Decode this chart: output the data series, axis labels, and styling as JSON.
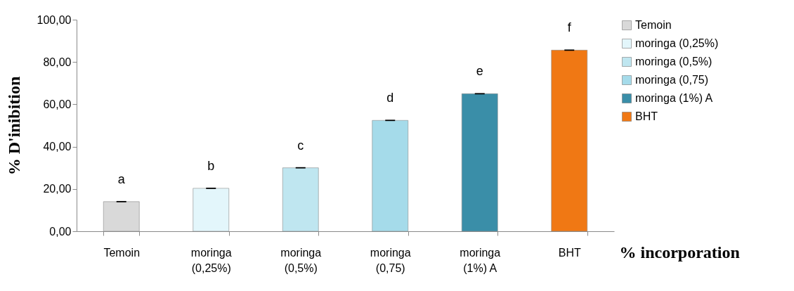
{
  "chart_data": {
    "type": "bar",
    "stacked": true,
    "ylabel": "% D'inibition",
    "xlabel": "% incorporation",
    "categories": [
      "Temoin",
      "moringa (0,25%)",
      "moringa (0,5%)",
      "moringa (0,75)",
      "moringa (1%) A",
      "BHT"
    ],
    "series": [
      {
        "name": "Temoin",
        "color": "#d9d9d9",
        "values": [
          14,
          null,
          null,
          null,
          null,
          null
        ],
        "errors": [
          0.3,
          null,
          null,
          null,
          null,
          null
        ]
      },
      {
        "name": "moringa (0,25%)",
        "color": "#e3f6fb",
        "values": [
          null,
          20.3,
          null,
          null,
          null,
          null
        ],
        "errors": [
          null,
          0.3,
          null,
          null,
          null,
          null
        ]
      },
      {
        "name": "moringa (0,5%)",
        "color": "#bfe6f0",
        "values": [
          null,
          null,
          30,
          null,
          null,
          null
        ],
        "errors": [
          null,
          null,
          0.3,
          null,
          null,
          null
        ]
      },
      {
        "name": "moringa (0,75)",
        "color": "#a5dbea",
        "values": [
          null,
          null,
          null,
          52.4,
          null,
          null
        ],
        "errors": [
          null,
          null,
          null,
          0.3,
          null,
          null
        ]
      },
      {
        "name": "moringa (1%) A",
        "color": "#3a8ea8",
        "values": [
          null,
          null,
          null,
          null,
          65,
          null
        ],
        "errors": [
          null,
          null,
          null,
          null,
          0.3,
          null
        ]
      },
      {
        "name": "BHT",
        "color": "#f07814",
        "values": [
          null,
          null,
          null,
          null,
          null,
          85.6
        ],
        "errors": [
          null,
          null,
          null,
          null,
          null,
          0.3
        ]
      }
    ],
    "ylim": [
      0,
      100
    ],
    "yticks": [
      {
        "value": 0,
        "label": "0,00"
      },
      {
        "value": 20,
        "label": "20,00"
      },
      {
        "value": 40,
        "label": "40,00"
      },
      {
        "value": 60,
        "label": "60,00"
      },
      {
        "value": 80,
        "label": "80,00"
      },
      {
        "value": 100,
        "label": "100,00"
      }
    ],
    "annotations": [
      {
        "text": "a",
        "x": "Temoin",
        "y": 14
      },
      {
        "text": "b",
        "x": "moringa (0,25%)",
        "y": 20.3
      },
      {
        "text": "c",
        "x": "moringa (0,5%)",
        "y": 30
      },
      {
        "text": "d",
        "x": "moringa (0,75)",
        "y": 52.4
      },
      {
        "text": "e",
        "x": "moringa (1%) A",
        "y": 65
      },
      {
        "text": "f",
        "x": "BHT",
        "y": 85.6
      }
    ],
    "legend": "top right"
  }
}
